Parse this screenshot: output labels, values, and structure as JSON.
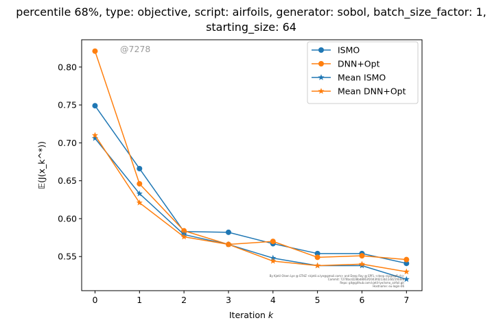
{
  "chart_data": {
    "type": "line",
    "title_line1": "percentile 68%, type: objective, script: airfoils, generator: sobol, batch_size_factor: 1,",
    "title_line2": "starting_size: 64",
    "xlabel_text": "Iteration ",
    "xlabel_var": "k",
    "ylabel": "𝔼(J(x_k^*))",
    "xlim": [
      -0.3,
      7.35
    ],
    "ylim": [
      0.505,
      0.836
    ],
    "xticks": [
      0,
      1,
      2,
      3,
      4,
      5,
      6,
      7
    ],
    "yticks": [
      0.55,
      0.6,
      0.65,
      0.7,
      0.75,
      0.8
    ],
    "ytick_labels": [
      "0.55",
      "0.60",
      "0.65",
      "0.70",
      "0.75",
      "0.80"
    ],
    "watermark": "@7278",
    "footer_lines": [
      "By Kjetil Olsen Lye @ ETHZ <kjetil.o.lye@gmail.com> and Deep Ray @ EPFL <deep.ray@epfl.ch>",
      "Commit: 7270bcd228bd8063f2043fd213b11dd21f4de8",
      "Repo: git@github.com:kjetil-lye/ismo_airfoil.git",
      "Hostname: eu-login-06"
    ],
    "legend_position": "upper right",
    "colors": {
      "blue": "#1f77b4",
      "orange": "#ff7f0e"
    },
    "series": [
      {
        "name": "ISMO",
        "color": "#1f77b4",
        "marker": "circle",
        "x": [
          0,
          1,
          2,
          3,
          4,
          5,
          6,
          7
        ],
        "y": [
          0.749,
          0.666,
          0.583,
          0.582,
          0.567,
          0.554,
          0.554,
          0.541
        ]
      },
      {
        "name": "DNN+Opt",
        "color": "#ff7f0e",
        "marker": "circle",
        "x": [
          0,
          1,
          2,
          3,
          4,
          5,
          6,
          7
        ],
        "y": [
          0.821,
          0.646,
          0.584,
          0.566,
          0.57,
          0.549,
          0.551,
          0.546
        ]
      },
      {
        "name": "Mean ISMO",
        "color": "#1f77b4",
        "marker": "star",
        "x": [
          0,
          1,
          2,
          3,
          4,
          5,
          6,
          7
        ],
        "y": [
          0.706,
          0.633,
          0.579,
          0.566,
          0.548,
          0.538,
          0.538,
          0.52
        ]
      },
      {
        "name": "Mean DNN+Opt",
        "color": "#ff7f0e",
        "marker": "star",
        "x": [
          0,
          1,
          2,
          3,
          4,
          5,
          6,
          7
        ],
        "y": [
          0.71,
          0.621,
          0.576,
          0.566,
          0.544,
          0.538,
          0.54,
          0.53
        ]
      }
    ]
  }
}
